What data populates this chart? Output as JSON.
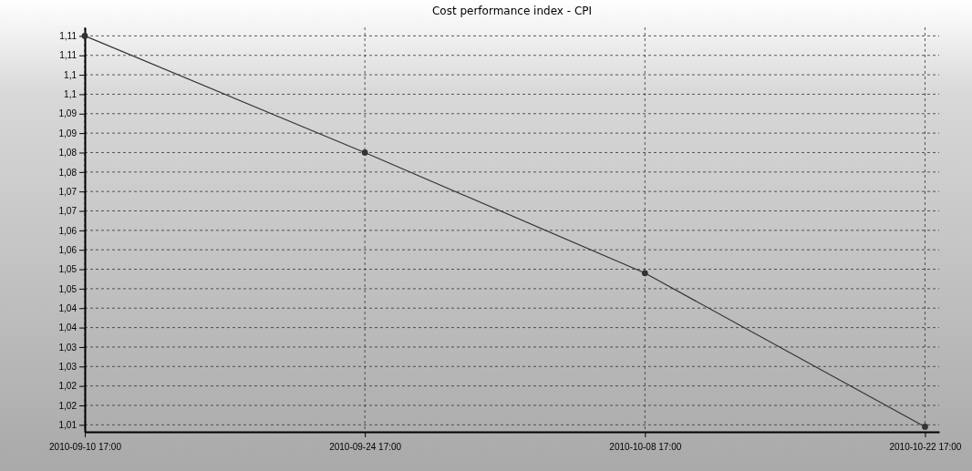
{
  "chart_data": {
    "type": "line",
    "title": "Cost performance index - CPI",
    "x": [
      "2010-09-10T17:00",
      "2010-09-24T17:00",
      "2010-10-08T17:00",
      "2010-10-22T17:00"
    ],
    "series": [
      {
        "color": "#333333",
        "values": [
          1.11,
          1.08,
          1.049,
          1.0095
        ]
      }
    ],
    "xlim": [
      "2010-09-10T17:00",
      "2010-10-23T10:00"
    ],
    "xticks": [
      {
        "value": "2010-09-10T17:00",
        "label": "2010-09-10 17:00"
      },
      {
        "value": "2010-09-24T17:00",
        "label": "2010-09-24 17:00"
      },
      {
        "value": "2010-10-08T17:00",
        "label": "2010-10-08 17:00"
      },
      {
        "value": "2010-10-22T17:00",
        "label": "2010-10-22 17:00"
      }
    ],
    "ylim": [
      1.0082,
      1.1122
    ],
    "yticks": [
      {
        "value": 1.01,
        "label": "1,01"
      },
      {
        "value": 1.015,
        "label": "1,02"
      },
      {
        "value": 1.02,
        "label": "1,02"
      },
      {
        "value": 1.025,
        "label": "1,03"
      },
      {
        "value": 1.03,
        "label": "1,03"
      },
      {
        "value": 1.035,
        "label": "1,04"
      },
      {
        "value": 1.04,
        "label": "1,04"
      },
      {
        "value": 1.045,
        "label": "1,05"
      },
      {
        "value": 1.05,
        "label": "1,05"
      },
      {
        "value": 1.055,
        "label": "1,06"
      },
      {
        "value": 1.06,
        "label": "1,06"
      },
      {
        "value": 1.065,
        "label": "1,07"
      },
      {
        "value": 1.07,
        "label": "1,07"
      },
      {
        "value": 1.075,
        "label": "1,08"
      },
      {
        "value": 1.08,
        "label": "1,08"
      },
      {
        "value": 1.085,
        "label": "1,09"
      },
      {
        "value": 1.09,
        "label": "1,09"
      },
      {
        "value": 1.095,
        "label": "1,1"
      },
      {
        "value": 1.1,
        "label": "1,1"
      },
      {
        "value": 1.105,
        "label": "1,11"
      },
      {
        "value": 1.11,
        "label": "1,11"
      }
    ],
    "grid": true,
    "marker": "circle",
    "line_style": "solid"
  }
}
